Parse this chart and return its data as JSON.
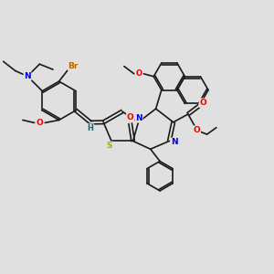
{
  "bg_color": "#e0e0e0",
  "bond_color": "#1a1a1a",
  "bond_width": 1.2,
  "dbo": 0.06,
  "atom_colors": {
    "N": "#0000ee",
    "O": "#ee0000",
    "S": "#aaaa00",
    "Br": "#bb6600",
    "H": "#007070",
    "C": "#1a1a1a"
  },
  "figsize": [
    3.0,
    3.0
  ],
  "dpi": 100,
  "xlim": [
    0,
    10
  ],
  "ylim": [
    0,
    10
  ]
}
